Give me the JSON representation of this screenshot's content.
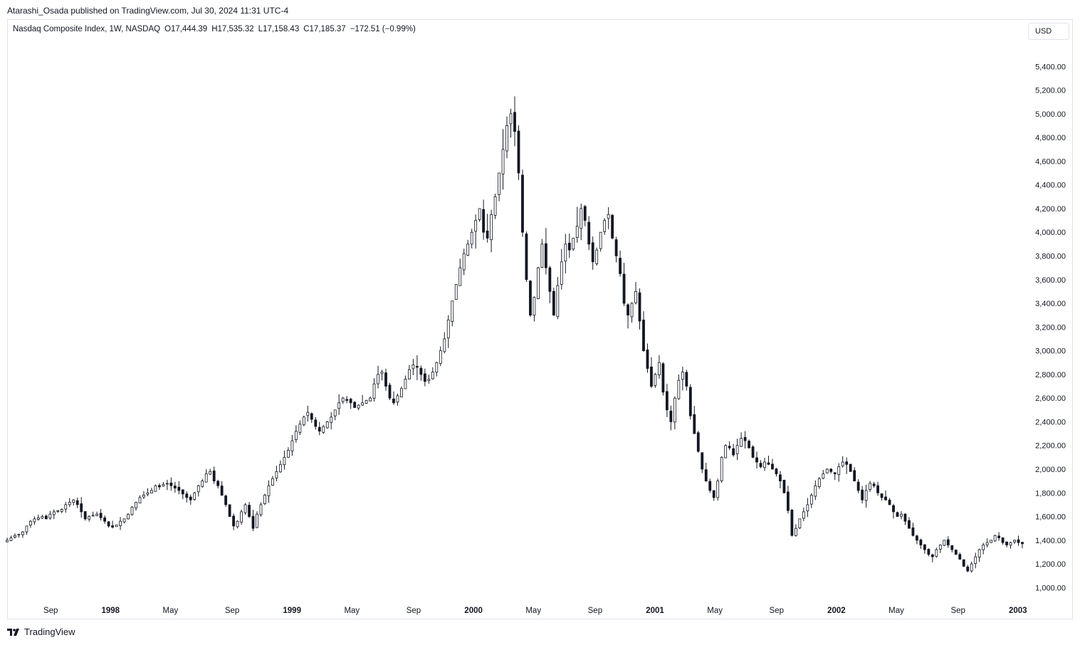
{
  "header": {
    "published_line": "Atarashi_Osada published on TradingView.com, Jul 30, 2024 11:31 UTC-4"
  },
  "legend": {
    "symbol": "Nasdaq Composite Index, 1W, NASDAQ",
    "open": "O17,444.39",
    "high": "H17,535.32",
    "low": "L17,158.43",
    "close": "C17,185.37",
    "change": "−172.51 (−0.99%)"
  },
  "currency_button": {
    "label": "USD"
  },
  "footer": {
    "brand": "TradingView",
    "logo_icon": "tradingview-logo-icon"
  },
  "colors": {
    "candle": "#131722",
    "up_fill": "#ffffff",
    "down_fill": "#131722",
    "border": "#e0e3eb"
  },
  "chart_data": {
    "type": "candlestick",
    "title": "Nasdaq Composite Index, 1W, NASDAQ",
    "ylim": [
      900,
      5600
    ],
    "y_ticks": [
      "1,000.00",
      "1,200.00",
      "1,400.00",
      "1,600.00",
      "1,800.00",
      "2,000.00",
      "2,200.00",
      "2,400.00",
      "2,600.00",
      "2,800.00",
      "3,000.00",
      "3,200.00",
      "3,400.00",
      "3,600.00",
      "3,800.00",
      "4,000.00",
      "4,200.00",
      "4,400.00",
      "4,600.00",
      "4,800.00",
      "5,000.00",
      "5,200.00",
      "5,400.00"
    ],
    "x_ticks": [
      {
        "label": "Sep",
        "t": 1997.67,
        "year": false
      },
      {
        "label": "1998",
        "t": 1998.0,
        "year": true
      },
      {
        "label": "May",
        "t": 1998.33,
        "year": false
      },
      {
        "label": "Sep",
        "t": 1998.67,
        "year": false
      },
      {
        "label": "1999",
        "t": 1999.0,
        "year": true
      },
      {
        "label": "May",
        "t": 1999.33,
        "year": false
      },
      {
        "label": "Sep",
        "t": 1999.67,
        "year": false
      },
      {
        "label": "2000",
        "t": 2000.0,
        "year": true
      },
      {
        "label": "May",
        "t": 2000.33,
        "year": false
      },
      {
        "label": "Sep",
        "t": 2000.67,
        "year": false
      },
      {
        "label": "2001",
        "t": 2001.0,
        "year": true
      },
      {
        "label": "May",
        "t": 2001.33,
        "year": false
      },
      {
        "label": "Sep",
        "t": 2001.67,
        "year": false
      },
      {
        "label": "2002",
        "t": 2002.0,
        "year": true
      },
      {
        "label": "May",
        "t": 2002.33,
        "year": false
      },
      {
        "label": "Sep",
        "t": 2002.67,
        "year": false
      },
      {
        "label": "2003",
        "t": 2003.0,
        "year": true
      }
    ],
    "x_range": [
      1997.43,
      2003.04
    ],
    "closes": [
      1400,
      1420,
      1440,
      1450,
      1470,
      1520,
      1560,
      1580,
      1590,
      1600,
      1580,
      1620,
      1640,
      1650,
      1660,
      1700,
      1720,
      1740,
      1700,
      1640,
      1580,
      1600,
      1610,
      1620,
      1590,
      1560,
      1520,
      1510,
      1530,
      1560,
      1580,
      1620,
      1680,
      1720,
      1760,
      1780,
      1800,
      1820,
      1860,
      1850,
      1870,
      1880,
      1860,
      1840,
      1820,
      1790,
      1760,
      1740,
      1800,
      1860,
      1900,
      1960,
      1980,
      1900,
      1860,
      1780,
      1700,
      1600,
      1520,
      1560,
      1640,
      1700,
      1600,
      1500,
      1620,
      1700,
      1780,
      1860,
      1920,
      1980,
      2040,
      2100,
      2160,
      2240,
      2320,
      2380,
      2440,
      2480,
      2420,
      2360,
      2320,
      2360,
      2400,
      2440,
      2500,
      2560,
      2600,
      2580,
      2560,
      2520,
      2540,
      2560,
      2580,
      2600,
      2720,
      2800,
      2820,
      2700,
      2600,
      2560,
      2620,
      2680,
      2760,
      2840,
      2880,
      2860,
      2800,
      2740,
      2760,
      2820,
      2900,
      3000,
      3100,
      3260,
      3420,
      3560,
      3700,
      3820,
      3900,
      4000,
      4100,
      4200,
      4000,
      3950,
      4150,
      4300,
      4500,
      4700,
      4900,
      5000,
      4850,
      4500,
      4000,
      3600,
      3300,
      3450,
      3700,
      3900,
      3700,
      3500,
      3300,
      3550,
      3750,
      3900,
      3850,
      3950,
      4050,
      4200,
      4100,
      3900,
      3750,
      3850,
      4000,
      4100,
      4150,
      3950,
      3800,
      3650,
      3400,
      3300,
      3400,
      3500,
      3250,
      3000,
      2850,
      2700,
      2800,
      2900,
      2650,
      2500,
      2400,
      2600,
      2750,
      2820,
      2700,
      2450,
      2300,
      2150,
      2000,
      1900,
      1820,
      1760,
      1900,
      2100,
      2200,
      2180,
      2120,
      2200,
      2260,
      2240,
      2180,
      2100,
      2060,
      2020,
      2060,
      2040,
      2000,
      1960,
      1900,
      1800,
      1650,
      1440,
      1500,
      1580,
      1640,
      1700,
      1780,
      1860,
      1920,
      1960,
      2000,
      1980,
      1960,
      2020,
      2060,
      2040,
      1980,
      1900,
      1820,
      1740,
      1820,
      1880,
      1860,
      1800,
      1760,
      1740,
      1700,
      1640,
      1600,
      1620,
      1560,
      1500,
      1440,
      1400,
      1360,
      1320,
      1280,
      1260,
      1320,
      1360,
      1400,
      1360,
      1320,
      1280,
      1240,
      1180,
      1140,
      1200,
      1260,
      1320,
      1360,
      1380,
      1400,
      1440,
      1420,
      1380,
      1360,
      1380,
      1400,
      1380,
      1370
    ]
  }
}
